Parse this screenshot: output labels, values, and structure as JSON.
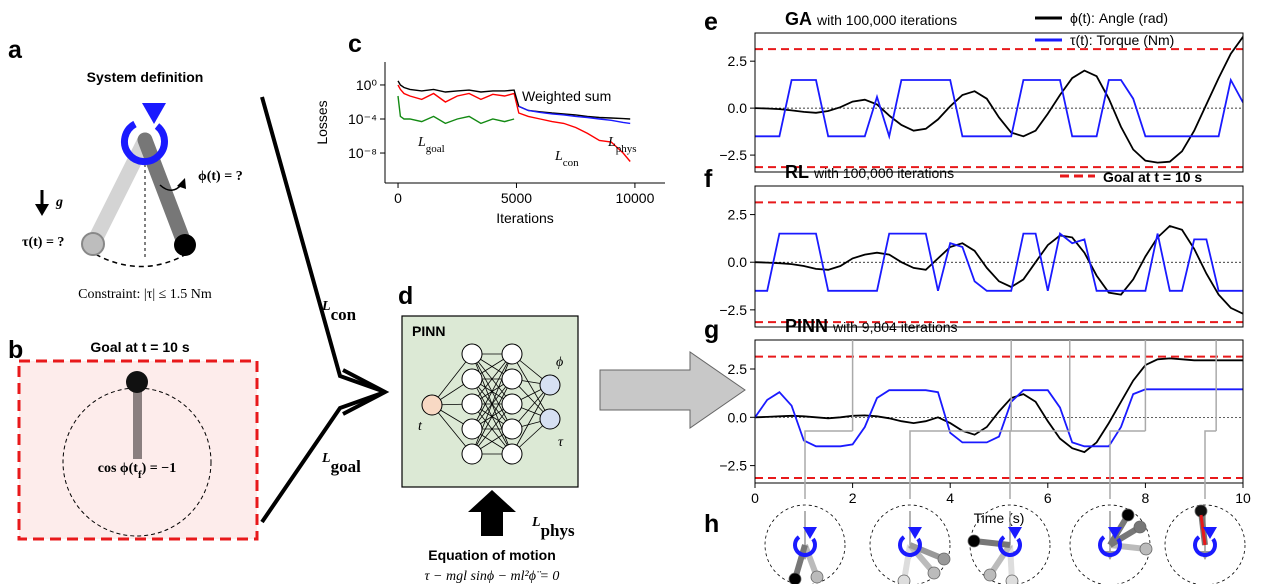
{
  "labels": [
    "a",
    "b",
    "c",
    "d",
    "e",
    "f",
    "g",
    "h"
  ],
  "system_definition": {
    "title": "System definition",
    "torque": "τ(t) = ?",
    "angle": "ϕ(t) = ?",
    "gravity": "g",
    "constraint": "Constraint: |τ| ≤ 1.5 Nm"
  },
  "goal": {
    "title": "Goal at t = 10 s",
    "condition": [
      "cos ϕ(t",
      "f",
      ") = −1"
    ]
  },
  "losses": {
    "con": [
      "L",
      "con"
    ],
    "goal": [
      "L",
      "goal"
    ],
    "phys": [
      "L",
      "phys"
    ]
  },
  "network": {
    "title": "PINN",
    "input": "t",
    "outputs": [
      "ϕ",
      "τ"
    ]
  },
  "equation": {
    "title": "Equation of motion",
    "formula": "τ − mgl sinϕ − ml²ϕ̈ = 0"
  },
  "chart_data": [
    {
      "type": "line",
      "log_y": true,
      "frame": false,
      "y_label": "Losses",
      "x_label": "Iterations",
      "x": [
        0,
        100,
        250,
        500,
        1000,
        1500,
        2000,
        2500,
        3000,
        3500,
        4000,
        4500,
        4900,
        5100,
        5500,
        6000,
        6500,
        7000,
        7500,
        8000,
        8500,
        9000,
        9500,
        9800
      ],
      "series": [
        {
          "name": "L",
          "subscript": "con",
          "color": "#ff0000",
          "values": [
            1,
            0.3,
            0.1,
            0.05,
            0.02,
            0.1,
            0.01,
            0.05,
            0.1,
            0.02,
            0.08,
            0.05,
            0.1,
            0.0005,
            0.0002,
            0.0001,
            5e-05,
            3e-05,
            1e-05,
            2e-06,
            3e-07,
            2e-07,
            1e-08,
            1e-09
          ]
        },
        {
          "name": "L",
          "subscript": "goal",
          "color": "#138a13",
          "values": [
            0.05,
            0.0002,
            0.0001,
            0.0001,
            5e-05,
            0.0002,
            3e-05,
            0.0001,
            0.0002,
            3e-05,
            0.0001,
            5e-05,
            0.0001,
            null,
            null,
            null,
            null,
            null,
            null,
            null,
            null,
            null,
            null,
            null
          ]
        },
        {
          "name": "Weighted sum",
          "color": "#000000",
          "values": [
            3,
            1,
            0.5,
            0.3,
            0.2,
            0.3,
            0.15,
            0.2,
            0.25,
            0.15,
            0.2,
            0.2,
            0.25,
            0.003,
            0.001,
            0.0007,
            0.0005,
            0.0004,
            0.0003,
            0.0002,
            0.00015,
            0.00013,
            0.00011,
            0.0001
          ]
        },
        {
          "name": "L",
          "subscript": "phys",
          "color": "#1a1aff",
          "values": [
            null,
            null,
            null,
            null,
            null,
            null,
            null,
            null,
            null,
            null,
            null,
            null,
            null,
            0.003,
            0.001,
            0.0006,
            0.0004,
            0.0003,
            0.0002,
            0.00015,
            0.0001,
            7e-05,
            4e-05,
            3e-05
          ]
        }
      ],
      "xlim": [
        -550,
        11270
      ],
      "xticks": [
        0,
        5000,
        10000
      ],
      "ylim": [
        3e-12,
        500
      ],
      "yticks": [
        {
          "value": 1,
          "label": "10⁰"
        },
        {
          "value": 0.0001,
          "label": "10⁻⁴"
        },
        {
          "value": 1e-08,
          "label": "10⁻⁸"
        }
      ]
    },
    {
      "type": "line",
      "frame": true,
      "title": "GA",
      "subtitle": "with 100,000 iterations",
      "zero_line": true,
      "goal_lines": [
        3.14159,
        -3.14159
      ],
      "goal_color": "#e8191b",
      "x": [
        0,
        0.25,
        0.5,
        0.75,
        1,
        1.25,
        1.5,
        1.75,
        2,
        2.25,
        2.5,
        2.75,
        3,
        3.25,
        3.5,
        3.75,
        4,
        4.25,
        4.5,
        4.75,
        5,
        5.25,
        5.5,
        5.75,
        6,
        6.25,
        6.5,
        6.75,
        7,
        7.25,
        7.5,
        7.75,
        8,
        8.25,
        8.5,
        8.75,
        9,
        9.25,
        9.5,
        9.75,
        10
      ],
      "series": [
        {
          "name": "ϕ(t): Angle (rad)",
          "color": "#000000",
          "values": [
            0,
            -0.02,
            -0.05,
            -0.12,
            -0.2,
            -0.25,
            -0.15,
            0.05,
            0.35,
            0.45,
            0.2,
            -0.4,
            -0.9,
            -1.2,
            -1.1,
            -0.6,
            0.1,
            0.7,
            0.9,
            0.5,
            -0.5,
            -1.3,
            -1.5,
            -1.2,
            -0.3,
            0.7,
            1.6,
            2.0,
            1.7,
            0.5,
            -1.0,
            -2.2,
            -2.8,
            -2.9,
            -2.85,
            -2.3,
            -1.2,
            0.2,
            1.6,
            2.9,
            3.8
          ]
        },
        {
          "name": "τ(t): Torque (Nm)",
          "color": "#1a1aff",
          "values": [
            -1.5,
            -1.5,
            -1.5,
            1.5,
            1.5,
            1.5,
            -1.5,
            -1.5,
            -1.5,
            -1.5,
            0.6,
            -1.5,
            1.5,
            1.5,
            1.5,
            1.5,
            1.5,
            -1.5,
            -1.5,
            -1.5,
            -1.5,
            -1.5,
            1.5,
            1.5,
            1.5,
            1.5,
            -1.5,
            -1.5,
            -1.5,
            1.5,
            1.5,
            0.5,
            -1.5,
            -1.5,
            -1.5,
            -1.5,
            -1.5,
            -1.5,
            -1.5,
            1.5,
            0.3
          ]
        }
      ],
      "xlim": [
        0,
        10
      ],
      "ylim": [
        -3.4,
        4.0
      ],
      "yticks": [
        2.5,
        {
          "value": 0,
          "label": "0.0"
        },
        {
          "value": -2.5,
          "label": "−2.5"
        }
      ]
    },
    {
      "type": "line",
      "frame": true,
      "title": "RL",
      "subtitle": "with 100,000 iterations",
      "zero_line": true,
      "goal_lines": [
        3.14159,
        -3.14159
      ],
      "goal_color": "#e8191b",
      "goal_label": "Goal at t = 10 s",
      "x": [
        0,
        0.25,
        0.5,
        0.75,
        1,
        1.25,
        1.5,
        1.75,
        2,
        2.25,
        2.5,
        2.75,
        3,
        3.25,
        3.5,
        3.75,
        4,
        4.25,
        4.5,
        4.75,
        5,
        5.25,
        5.5,
        5.75,
        6,
        6.25,
        6.5,
        6.75,
        7,
        7.25,
        7.5,
        7.75,
        8,
        8.25,
        8.5,
        8.75,
        9,
        9.25,
        9.5,
        9.75,
        10
      ],
      "series": [
        {
          "color": "#000000",
          "values": [
            0,
            -0.02,
            -0.05,
            -0.1,
            -0.2,
            -0.35,
            -0.4,
            -0.2,
            0.2,
            0.4,
            0.5,
            0.4,
            0.0,
            -0.3,
            -0.4,
            0.2,
            0.8,
            1.0,
            0.6,
            -0.3,
            -1.0,
            -1.3,
            -0.9,
            0.0,
            0.9,
            1.4,
            1.3,
            0.5,
            -0.7,
            -1.6,
            -1.7,
            -0.9,
            0.3,
            1.3,
            1.9,
            1.7,
            0.7,
            -0.6,
            -1.7,
            -2.4,
            -2.7
          ]
        },
        {
          "color": "#1a1aff",
          "values": [
            -1.5,
            -1.5,
            1.5,
            1.5,
            1.5,
            1.5,
            -1.5,
            -1.5,
            -1.5,
            -1.5,
            -1.5,
            1.5,
            1.5,
            1.5,
            1.5,
            -1.5,
            1.0,
            0.8,
            -1.0,
            -1.5,
            -1.5,
            -1.5,
            1.5,
            1.5,
            -1.5,
            1.5,
            1.0,
            1.2,
            -1.5,
            -1.5,
            -1.5,
            -1.5,
            -1.5,
            1.5,
            -1.5,
            -1.5,
            1.2,
            1.2,
            -1.5,
            -1.5,
            -1.5
          ]
        }
      ],
      "xlim": [
        0,
        10
      ],
      "ylim": [
        -3.4,
        4.0
      ],
      "yticks": [
        2.5,
        {
          "value": 0,
          "label": "0.0"
        },
        {
          "value": -2.5,
          "label": "−2.5"
        }
      ]
    },
    {
      "type": "line",
      "frame": true,
      "title": "PINN",
      "subtitle": "with 9,804 iterations",
      "zero_line": true,
      "x_label": "Time (s)",
      "goal_lines": [
        3.14159,
        -3.14159
      ],
      "goal_color": "#e8191b",
      "snapshot_times": [
        2,
        5.25,
        6.45,
        8,
        9.45
      ],
      "x": [
        0,
        0.25,
        0.5,
        0.75,
        1,
        1.25,
        1.5,
        1.75,
        2,
        2.25,
        2.5,
        2.75,
        3,
        3.25,
        3.5,
        3.75,
        4,
        4.25,
        4.5,
        4.75,
        5,
        5.25,
        5.5,
        5.75,
        6,
        6.25,
        6.5,
        6.75,
        7,
        7.25,
        7.5,
        7.75,
        8,
        8.25,
        8.5,
        8.75,
        9,
        9.25,
        9.5,
        9.75,
        10
      ],
      "series": [
        {
          "color": "#000000",
          "values": [
            0,
            0.02,
            0.05,
            0.08,
            0.05,
            0,
            -0.05,
            0,
            0.08,
            0.1,
            0.05,
            -0.05,
            -0.2,
            -0.3,
            -0.2,
            0,
            -0.3,
            -0.7,
            -0.9,
            -0.5,
            0.3,
            1.0,
            1.2,
            0.8,
            -0.2,
            -1.1,
            -1.6,
            -1.8,
            -1.3,
            -0.3,
            0.8,
            1.9,
            2.7,
            3.0,
            3.05,
            3.0,
            2.95,
            2.95,
            2.95,
            2.95,
            2.95
          ]
        },
        {
          "color": "#1a1aff",
          "values": [
            0,
            0.9,
            1.3,
            0.6,
            -1.2,
            -1.5,
            -1.5,
            -1.5,
            -1.4,
            -0.5,
            1.0,
            1.4,
            1.4,
            1.4,
            1.4,
            1.3,
            -0.8,
            -1.3,
            -1.3,
            -1.3,
            -1.0,
            0.8,
            1.4,
            1.4,
            1.4,
            0.5,
            -1.3,
            -1.5,
            -1.5,
            -1.5,
            -0.5,
            1.2,
            1.45,
            1.45,
            1.45,
            1.45,
            1.45,
            1.45,
            1.45,
            1.45,
            1.45
          ]
        }
      ],
      "xlim": [
        0,
        10
      ],
      "xticks": [
        0,
        2,
        4,
        6,
        8,
        10
      ],
      "ylim": [
        -3.4,
        4.0
      ],
      "yticks": [
        2.5,
        {
          "value": 0,
          "label": "0.0"
        },
        {
          "value": -2.5,
          "label": "−2.5"
        }
      ]
    }
  ]
}
